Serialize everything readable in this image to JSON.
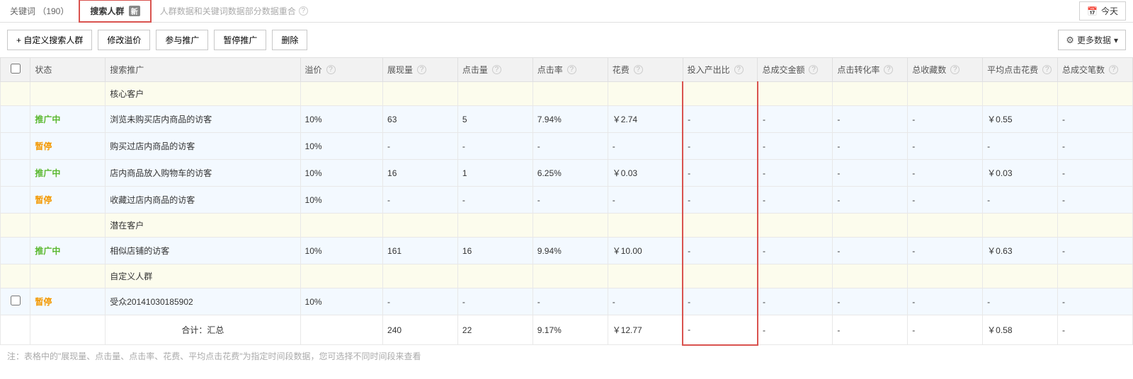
{
  "tabs": {
    "keywords": "关键词 （190）",
    "search_crowd": "搜索人群",
    "search_crowd_badge": "新"
  },
  "help_text": "人群数据和关键词数据部分数据重合",
  "date_picker": "今天",
  "toolbar": {
    "custom_crowd": "+ 自定义搜索人群",
    "modify_premium": "修改溢价",
    "join_promo": "参与推广",
    "pause_promo": "暂停推广",
    "delete": "删除",
    "more_data": "更多数据"
  },
  "columns": {
    "status": "状态",
    "name": "搜索推广",
    "premium": "溢价",
    "impressions": "展现量",
    "clicks": "点击量",
    "ctr": "点击率",
    "cost": "花费",
    "roi": "投入产出比",
    "total_tx_amount": "总成交金额",
    "click_cvr": "点击转化率",
    "total_collect": "总收藏数",
    "avg_cpc": "平均点击花费",
    "total_tx_count": "总成交笔数"
  },
  "status_labels": {
    "active": "推广中",
    "paused": "暂停"
  },
  "groups": [
    {
      "label": "核心客户",
      "rows": [
        {
          "status": "active",
          "name": "浏览未购买店内商品的访客",
          "premium": "10%",
          "impressions": "63",
          "clicks": "5",
          "ctr": "7.94%",
          "cost": "￥2.74",
          "roi": "-",
          "tx_amount": "-",
          "cvr": "-",
          "collect": "-",
          "avg_cpc": "￥0.55",
          "tx_count": "-"
        },
        {
          "status": "paused",
          "name": "购买过店内商品的访客",
          "premium": "10%",
          "impressions": "-",
          "clicks": "-",
          "ctr": "-",
          "cost": "-",
          "roi": "-",
          "tx_amount": "-",
          "cvr": "-",
          "collect": "-",
          "avg_cpc": "-",
          "tx_count": "-"
        },
        {
          "status": "active",
          "name": "店内商品放入购物车的访客",
          "premium": "10%",
          "impressions": "16",
          "clicks": "1",
          "ctr": "6.25%",
          "cost": "￥0.03",
          "roi": "-",
          "tx_amount": "-",
          "cvr": "-",
          "collect": "-",
          "avg_cpc": "￥0.03",
          "tx_count": "-"
        },
        {
          "status": "paused",
          "name": "收藏过店内商品的访客",
          "premium": "10%",
          "impressions": "-",
          "clicks": "-",
          "ctr": "-",
          "cost": "-",
          "roi": "-",
          "tx_amount": "-",
          "cvr": "-",
          "collect": "-",
          "avg_cpc": "-",
          "tx_count": "-"
        }
      ]
    },
    {
      "label": "潜在客户",
      "rows": [
        {
          "status": "active",
          "name": "相似店铺的访客",
          "premium": "10%",
          "impressions": "161",
          "clicks": "16",
          "ctr": "9.94%",
          "cost": "￥10.00",
          "roi": "-",
          "tx_amount": "-",
          "cvr": "-",
          "collect": "-",
          "avg_cpc": "￥0.63",
          "tx_count": "-"
        }
      ]
    },
    {
      "label": "自定义人群",
      "rows": [
        {
          "status": "paused",
          "checkbox": true,
          "name": "受众20141030185902",
          "premium": "10%",
          "impressions": "-",
          "clicks": "-",
          "ctr": "-",
          "cost": "-",
          "roi": "-",
          "tx_amount": "-",
          "cvr": "-",
          "collect": "-",
          "avg_cpc": "-",
          "tx_count": "-"
        }
      ]
    }
  ],
  "summary": {
    "label": "合计：汇总",
    "impressions": "240",
    "clicks": "22",
    "ctr": "9.17%",
    "cost": "￥12.77",
    "roi": "-",
    "tx_amount": "-",
    "cvr": "-",
    "collect": "-",
    "avg_cpc": "￥0.58",
    "tx_count": "-"
  },
  "footer_note": "注：表格中的\"展现量、点击量、点击率、花费、平均点击花费\"为指定时间段数据，您可选择不同时间段来查看",
  "colors": {
    "active_status": "#5ab82f",
    "paused_status": "#f39800",
    "highlight_border": "#d9534f",
    "row_blue": "#f3f9ff",
    "group_bg": "#fcfced"
  }
}
